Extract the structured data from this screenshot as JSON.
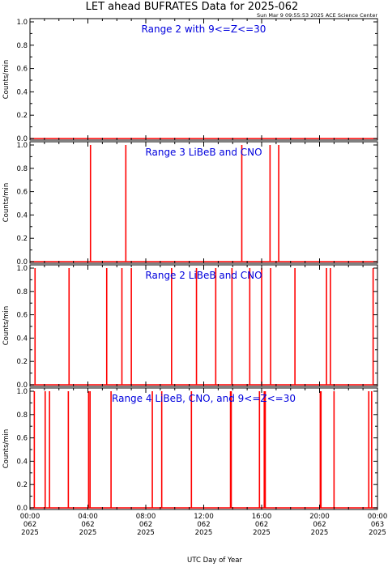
{
  "title": "LET ahead BUFRATES Data for 2025-062",
  "timestamp": "Sun Mar  9 09:55:53 2025 ACE Science Center",
  "colors": {
    "series": "#ff0000",
    "panel_title": "#0000dd",
    "frame": "#000000"
  },
  "chart_data": [
    {
      "type": "line",
      "title": "Range 2 with 9<=Z<=30",
      "ylabel": "Counts/min",
      "ylim": [
        0,
        1
      ],
      "yticks": [
        "0.0",
        "0.2",
        "0.4",
        "0.6",
        "0.8",
        "1.0"
      ],
      "xlim_hours": [
        0,
        24
      ],
      "spike_hours": []
    },
    {
      "type": "line",
      "title": "Range 3 LiBeB and CNO",
      "ylabel": "Counts/min",
      "ylim": [
        0,
        1
      ],
      "yticks": [
        "0.0",
        "0.2",
        "0.4",
        "0.6",
        "0.8",
        "1.0"
      ],
      "xlim_hours": [
        0,
        24
      ],
      "spike_hours": [
        4.18,
        6.62,
        14.63,
        16.58,
        17.18
      ]
    },
    {
      "type": "line",
      "title": "Range 2 LiBeB and CNO",
      "ylabel": "Counts/min",
      "ylim": [
        0,
        1
      ],
      "yticks": [
        "0.0",
        "0.2",
        "0.4",
        "0.6",
        "0.8",
        "1.0"
      ],
      "xlim_hours": [
        0,
        24
      ],
      "spike_hours": [
        0.35,
        2.7,
        5.3,
        6.35,
        7.0,
        9.78,
        11.5,
        12.83,
        13.95,
        15.18,
        16.0,
        16.62,
        18.3,
        20.48,
        20.75,
        23.7
      ]
    },
    {
      "type": "line",
      "title": "Range 4 LiBeB, CNO, and 9<=Z<=30",
      "ylabel": "Counts/min",
      "ylim": [
        0,
        1
      ],
      "yticks": [
        "0.0",
        "0.2",
        "0.4",
        "0.6",
        "0.8",
        "1.0"
      ],
      "xlim_hours": [
        0,
        24
      ],
      "spike_hours": [
        0.3,
        1.05,
        1.35,
        2.65,
        4.05,
        4.15,
        5.6,
        8.45,
        9.1,
        11.15,
        13.85,
        13.9,
        15.85,
        16.18,
        16.25,
        20.05,
        20.1,
        21.0,
        23.4,
        23.6
      ]
    }
  ],
  "x_axis": {
    "label": "UTC Day of Year",
    "ticks": [
      {
        "time": "00:00",
        "doy": "062",
        "year": "2025"
      },
      {
        "time": "04:00",
        "doy": "062",
        "year": "2025"
      },
      {
        "time": "08:00",
        "doy": "062",
        "year": "2025"
      },
      {
        "time": "12:00",
        "doy": "062",
        "year": "2025"
      },
      {
        "time": "16:00",
        "doy": "062",
        "year": "2025"
      },
      {
        "time": "20:00",
        "doy": "062",
        "year": "2025"
      },
      {
        "time": "00:00",
        "doy": "063",
        "year": "2025"
      }
    ]
  }
}
